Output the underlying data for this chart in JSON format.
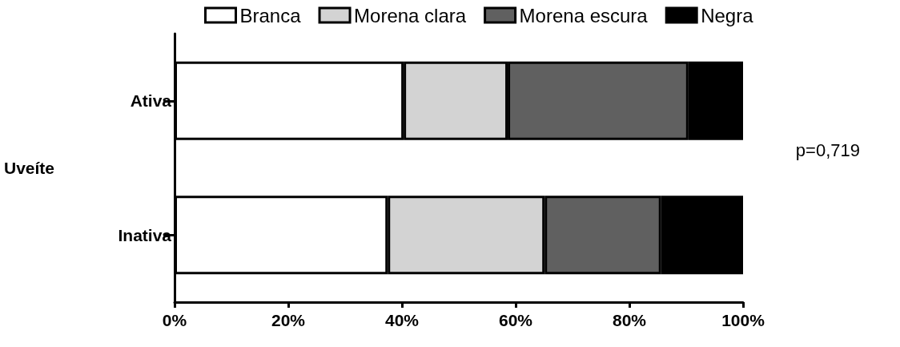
{
  "chart_data": {
    "type": "bar",
    "orientation": "horizontal",
    "stacked": true,
    "ylabel": "Uveíte",
    "categories": [
      "Ativa",
      "Inativa"
    ],
    "series": [
      {
        "name": "Branca",
        "color": "#ffffff",
        "values": [
          40.3,
          37.5
        ]
      },
      {
        "name": "Morena clara",
        "color": "#d3d3d3",
        "values": [
          18.3,
          27.6
        ]
      },
      {
        "name": "Morena escura",
        "color": "#606060",
        "values": [
          31.8,
          20.5
        ]
      },
      {
        "name": "Negra",
        "color": "#000000",
        "values": [
          9.6,
          14.4
        ]
      }
    ],
    "xlim": [
      0,
      100
    ],
    "xticks": [
      {
        "value": 0,
        "label": "0%"
      },
      {
        "value": 20,
        "label": "20%"
      },
      {
        "value": 40,
        "label": "40%"
      },
      {
        "value": 60,
        "label": "60%"
      },
      {
        "value": 80,
        "label": "80%"
      },
      {
        "value": 100,
        "label": "100%"
      }
    ],
    "annotations": [
      "p=0,719"
    ],
    "legend": "top",
    "grid": false
  }
}
